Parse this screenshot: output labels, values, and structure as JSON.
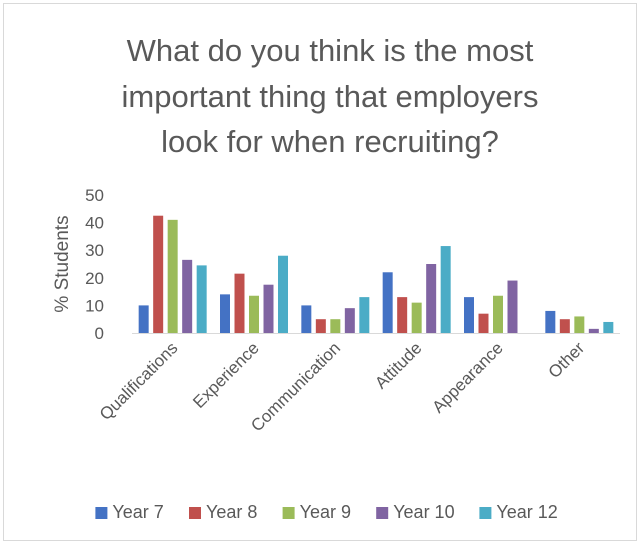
{
  "chart_data": {
    "type": "bar",
    "title_lines": [
      "What do you think is the most",
      "important thing that employers",
      "look for when recruiting?"
    ],
    "ylabel": "% Students",
    "xlabel": "",
    "ylim": [
      0,
      50
    ],
    "yticks": [
      0,
      10,
      20,
      30,
      40,
      50
    ],
    "grid": false,
    "legend_position": "bottom",
    "categories": [
      "Qualifications",
      "Experience",
      "Communication",
      "Attitude",
      "Appearance",
      "Other"
    ],
    "series": [
      {
        "name": "Year 7",
        "color": "#4472c4",
        "values": [
          10,
          14,
          10,
          22,
          13,
          8
        ]
      },
      {
        "name": "Year 8",
        "color": "#c0504d",
        "values": [
          42.5,
          21.5,
          5,
          13,
          7,
          5
        ]
      },
      {
        "name": "Year 9",
        "color": "#9bbb59",
        "values": [
          41,
          13.5,
          5,
          11,
          13.5,
          6
        ]
      },
      {
        "name": "Year 10",
        "color": "#8064a2",
        "values": [
          26.5,
          17.5,
          9,
          25,
          19,
          1.5
        ]
      },
      {
        "name": "Year 12",
        "color": "#4bacc6",
        "values": [
          24.5,
          28,
          13,
          31.5,
          0,
          4
        ]
      }
    ]
  }
}
